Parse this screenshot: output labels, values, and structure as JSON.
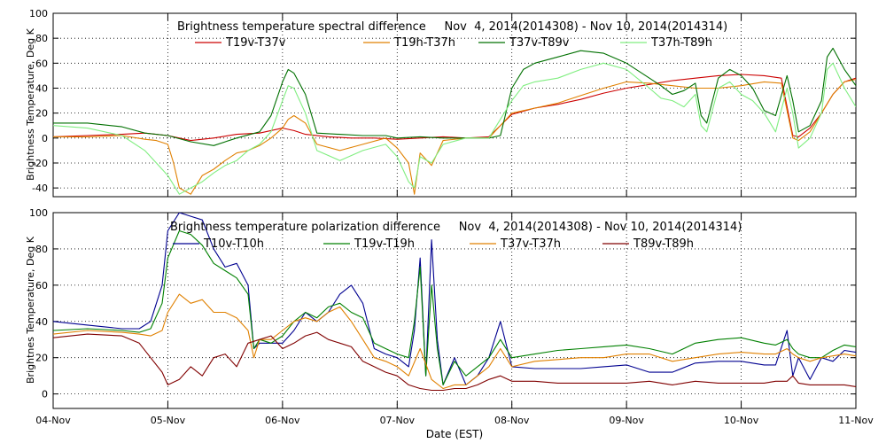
{
  "xlabel": "Date (EST)",
  "x_ticks": [
    "04-Nov",
    "05-Nov",
    "06-Nov",
    "07-Nov",
    "08-Nov",
    "09-Nov",
    "10-Nov",
    "11-Nov"
  ],
  "chart_data": [
    {
      "type": "line",
      "title": "Brightness temperature spectral difference     Nov  4, 2014(2014308) - Nov 10, 2014(2014314)",
      "ylabel": "Brightness Temperature, Deg K",
      "xlim": [
        0,
        7
      ],
      "ylim": [
        -47,
        100
      ],
      "yticks": [
        -40,
        -20,
        0,
        20,
        40,
        60,
        80,
        100
      ],
      "grid": true,
      "legend": "top",
      "series": [
        {
          "name": "T19v-T37v",
          "color": "#cc0000",
          "x": [
            0,
            0.3,
            0.6,
            0.8,
            1.0,
            1.2,
            1.4,
            1.6,
            1.8,
            2.0,
            2.1,
            2.2,
            2.4,
            2.6,
            2.8,
            3.0,
            3.2,
            3.4,
            3.6,
            3.8,
            4.0,
            4.2,
            4.4,
            4.6,
            4.8,
            5.0,
            5.2,
            5.4,
            5.6,
            5.8,
            6.0,
            6.2,
            6.35,
            6.45,
            6.5,
            6.6,
            6.7,
            6.8,
            6.9,
            7.0
          ],
          "y": [
            1,
            2,
            3,
            4,
            2,
            -2,
            0,
            3,
            4,
            8,
            6,
            3,
            1,
            0,
            0,
            -1,
            0,
            1,
            0,
            1,
            19,
            24,
            27,
            31,
            36,
            40,
            43,
            46,
            48,
            50,
            51,
            50,
            48,
            2,
            1,
            8,
            20,
            35,
            45,
            48
          ]
        },
        {
          "name": "T19h-T37h",
          "color": "#e08000",
          "x": [
            0,
            0.3,
            0.6,
            0.8,
            0.9,
            1.0,
            1.05,
            1.1,
            1.2,
            1.3,
            1.4,
            1.5,
            1.6,
            1.7,
            1.8,
            1.9,
            2.0,
            2.05,
            2.1,
            2.2,
            2.3,
            2.5,
            2.7,
            2.9,
            3.0,
            3.1,
            3.15,
            3.2,
            3.3,
            3.4,
            3.6,
            3.8,
            4.0,
            4.2,
            4.4,
            4.6,
            4.8,
            5.0,
            5.2,
            5.4,
            5.6,
            5.8,
            6.0,
            6.2,
            6.35,
            6.45,
            6.5,
            6.6,
            6.7,
            6.8,
            6.9,
            7.0
          ],
          "y": [
            1,
            1,
            2,
            -1,
            -2,
            -5,
            -20,
            -40,
            -45,
            -30,
            -25,
            -18,
            -12,
            -10,
            -6,
            0,
            8,
            15,
            18,
            12,
            -5,
            -10,
            -5,
            0,
            -8,
            -20,
            -45,
            -12,
            -22,
            -2,
            0,
            0,
            20,
            24,
            28,
            34,
            40,
            45,
            44,
            42,
            40,
            40,
            42,
            45,
            44,
            0,
            -2,
            5,
            20,
            35,
            45,
            47
          ]
        },
        {
          "name": "T37v-T89v",
          "color": "#007000",
          "x": [
            0,
            0.3,
            0.6,
            0.8,
            1.0,
            1.2,
            1.4,
            1.6,
            1.8,
            1.9,
            2.0,
            2.05,
            2.1,
            2.2,
            2.3,
            2.5,
            2.7,
            2.9,
            3.0,
            3.2,
            3.4,
            3.6,
            3.8,
            3.9,
            4.0,
            4.1,
            4.2,
            4.4,
            4.6,
            4.8,
            5.0,
            5.2,
            5.3,
            5.4,
            5.5,
            5.6,
            5.65,
            5.7,
            5.8,
            5.9,
            6.0,
            6.1,
            6.2,
            6.3,
            6.4,
            6.45,
            6.5,
            6.6,
            6.7,
            6.75,
            6.8,
            6.9,
            7.0
          ],
          "y": [
            12,
            12,
            9,
            4,
            2,
            -3,
            -6,
            0,
            5,
            18,
            45,
            55,
            52,
            35,
            4,
            3,
            2,
            2,
            0,
            1,
            0,
            0,
            0,
            2,
            40,
            55,
            60,
            65,
            70,
            68,
            60,
            48,
            42,
            35,
            38,
            44,
            18,
            12,
            48,
            55,
            50,
            40,
            22,
            18,
            50,
            30,
            5,
            10,
            30,
            65,
            72,
            55,
            42
          ]
        },
        {
          "name": "T37h-T89h",
          "color": "#80ee80",
          "x": [
            0,
            0.3,
            0.6,
            0.8,
            0.9,
            1.0,
            1.1,
            1.2,
            1.3,
            1.4,
            1.5,
            1.6,
            1.7,
            1.8,
            1.9,
            2.0,
            2.05,
            2.1,
            2.2,
            2.3,
            2.5,
            2.7,
            2.9,
            3.0,
            3.1,
            3.15,
            3.2,
            3.3,
            3.4,
            3.6,
            3.8,
            4.0,
            4.1,
            4.2,
            4.4,
            4.6,
            4.8,
            5.0,
            5.2,
            5.3,
            5.4,
            5.5,
            5.6,
            5.65,
            5.7,
            5.8,
            5.9,
            6.0,
            6.1,
            6.2,
            6.3,
            6.4,
            6.45,
            6.5,
            6.6,
            6.7,
            6.75,
            6.8,
            6.9,
            7.0
          ],
          "y": [
            10,
            8,
            2,
            -10,
            -20,
            -30,
            -45,
            -40,
            -35,
            -28,
            -22,
            -18,
            -10,
            -5,
            5,
            30,
            42,
            40,
            20,
            -10,
            -18,
            -10,
            -5,
            -15,
            -35,
            -40,
            -15,
            -20,
            -5,
            0,
            0,
            30,
            42,
            45,
            48,
            55,
            60,
            55,
            40,
            32,
            30,
            25,
            35,
            10,
            5,
            40,
            45,
            35,
            30,
            20,
            5,
            40,
            20,
            -8,
            0,
            20,
            55,
            60,
            40,
            25
          ]
        }
      ]
    },
    {
      "type": "line",
      "title": "Brightness temperature polarization difference     Nov  4, 2014(2014308) - Nov 10, 2014(2014314)",
      "ylabel": "Brightnes Temperature, Deg K",
      "xlim": [
        0,
        7
      ],
      "ylim": [
        -8,
        100
      ],
      "yticks": [
        0,
        20,
        40,
        60,
        80,
        100
      ],
      "grid": true,
      "legend": "top",
      "series": [
        {
          "name": "T10v-T10h",
          "color": "#000090",
          "x": [
            0,
            0.3,
            0.6,
            0.75,
            0.85,
            0.95,
            1.0,
            1.1,
            1.2,
            1.3,
            1.4,
            1.5,
            1.6,
            1.7,
            1.75,
            1.8,
            1.9,
            2.0,
            2.1,
            2.2,
            2.3,
            2.4,
            2.5,
            2.6,
            2.7,
            2.8,
            2.9,
            3.0,
            3.1,
            3.15,
            3.2,
            3.25,
            3.3,
            3.35,
            3.4,
            3.5,
            3.6,
            3.7,
            3.8,
            3.9,
            4.0,
            4.2,
            4.4,
            4.6,
            4.8,
            5.0,
            5.2,
            5.4,
            5.6,
            5.8,
            6.0,
            6.2,
            6.3,
            6.4,
            6.45,
            6.5,
            6.6,
            6.7,
            6.8,
            6.9,
            7.0
          ],
          "y": [
            40,
            38,
            36,
            36,
            40,
            60,
            90,
            100,
            98,
            96,
            80,
            70,
            72,
            60,
            25,
            28,
            28,
            28,
            35,
            45,
            40,
            45,
            55,
            60,
            50,
            25,
            22,
            20,
            15,
            35,
            75,
            10,
            85,
            30,
            5,
            20,
            5,
            10,
            20,
            40,
            15,
            14,
            14,
            14,
            15,
            16,
            12,
            12,
            17,
            18,
            18,
            16,
            16,
            35,
            10,
            20,
            8,
            20,
            18,
            24,
            23
          ]
        },
        {
          "name": "T19v-T19h",
          "color": "#008000",
          "x": [
            0,
            0.3,
            0.6,
            0.75,
            0.85,
            0.95,
            1.0,
            1.1,
            1.2,
            1.3,
            1.4,
            1.5,
            1.6,
            1.7,
            1.75,
            1.8,
            1.9,
            2.0,
            2.1,
            2.2,
            2.3,
            2.4,
            2.5,
            2.6,
            2.7,
            2.8,
            2.9,
            3.0,
            3.1,
            3.15,
            3.2,
            3.25,
            3.3,
            3.35,
            3.4,
            3.5,
            3.6,
            3.7,
            3.8,
            3.9,
            4.0,
            4.2,
            4.4,
            4.6,
            4.8,
            5.0,
            5.2,
            5.4,
            5.6,
            5.8,
            6.0,
            6.2,
            6.3,
            6.4,
            6.45,
            6.5,
            6.6,
            6.7,
            6.8,
            6.9,
            7.0
          ],
          "y": [
            35,
            36,
            35,
            34,
            36,
            50,
            75,
            90,
            88,
            82,
            72,
            68,
            64,
            55,
            25,
            30,
            28,
            32,
            40,
            45,
            42,
            48,
            50,
            45,
            42,
            28,
            25,
            22,
            20,
            40,
            70,
            10,
            60,
            25,
            5,
            18,
            10,
            15,
            20,
            30,
            20,
            22,
            24,
            25,
            26,
            27,
            25,
            22,
            28,
            30,
            31,
            28,
            27,
            30,
            25,
            22,
            20,
            20,
            24,
            27,
            26
          ]
        },
        {
          "name": "T37v-T37h",
          "color": "#e08000",
          "x": [
            0,
            0.3,
            0.6,
            0.75,
            0.85,
            0.95,
            1.0,
            1.1,
            1.2,
            1.3,
            1.4,
            1.5,
            1.6,
            1.7,
            1.75,
            1.8,
            1.9,
            2.0,
            2.1,
            2.2,
            2.3,
            2.4,
            2.5,
            2.6,
            2.7,
            2.8,
            2.9,
            3.0,
            3.1,
            3.2,
            3.3,
            3.4,
            3.5,
            3.6,
            3.7,
            3.8,
            3.9,
            4.0,
            4.2,
            4.4,
            4.6,
            4.8,
            5.0,
            5.2,
            5.4,
            5.6,
            5.8,
            6.0,
            6.2,
            6.3,
            6.4,
            6.45,
            6.5,
            6.6,
            6.7,
            6.8,
            6.9,
            7.0
          ],
          "y": [
            33,
            35,
            34,
            33,
            32,
            35,
            45,
            55,
            50,
            52,
            45,
            45,
            42,
            35,
            20,
            30,
            30,
            35,
            40,
            42,
            40,
            45,
            48,
            40,
            30,
            20,
            18,
            15,
            10,
            25,
            8,
            3,
            5,
            5,
            10,
            15,
            25,
            15,
            18,
            19,
            20,
            20,
            22,
            22,
            18,
            20,
            22,
            23,
            22,
            22,
            25,
            22,
            20,
            18,
            20,
            21,
            22,
            21
          ]
        },
        {
          "name": "T89v-T89h",
          "color": "#800000",
          "x": [
            0,
            0.3,
            0.6,
            0.75,
            0.85,
            0.95,
            1.0,
            1.1,
            1.2,
            1.3,
            1.4,
            1.5,
            1.6,
            1.7,
            1.8,
            1.9,
            2.0,
            2.1,
            2.2,
            2.3,
            2.4,
            2.5,
            2.6,
            2.7,
            2.8,
            2.9,
            3.0,
            3.1,
            3.2,
            3.3,
            3.4,
            3.5,
            3.6,
            3.7,
            3.8,
            3.9,
            4.0,
            4.2,
            4.4,
            4.6,
            4.8,
            5.0,
            5.2,
            5.4,
            5.6,
            5.8,
            6.0,
            6.2,
            6.3,
            6.4,
            6.45,
            6.5,
            6.6,
            6.7,
            6.8,
            6.9,
            7.0
          ],
          "y": [
            31,
            33,
            32,
            28,
            20,
            12,
            5,
            8,
            15,
            10,
            20,
            22,
            15,
            28,
            30,
            32,
            25,
            28,
            32,
            34,
            30,
            28,
            26,
            18,
            15,
            12,
            10,
            5,
            3,
            2,
            2,
            3,
            3,
            5,
            8,
            10,
            7,
            7,
            6,
            6,
            6,
            6,
            7,
            5,
            7,
            6,
            6,
            6,
            7,
            7,
            10,
            6,
            5,
            5,
            5,
            5,
            4
          ]
        }
      ]
    }
  ]
}
